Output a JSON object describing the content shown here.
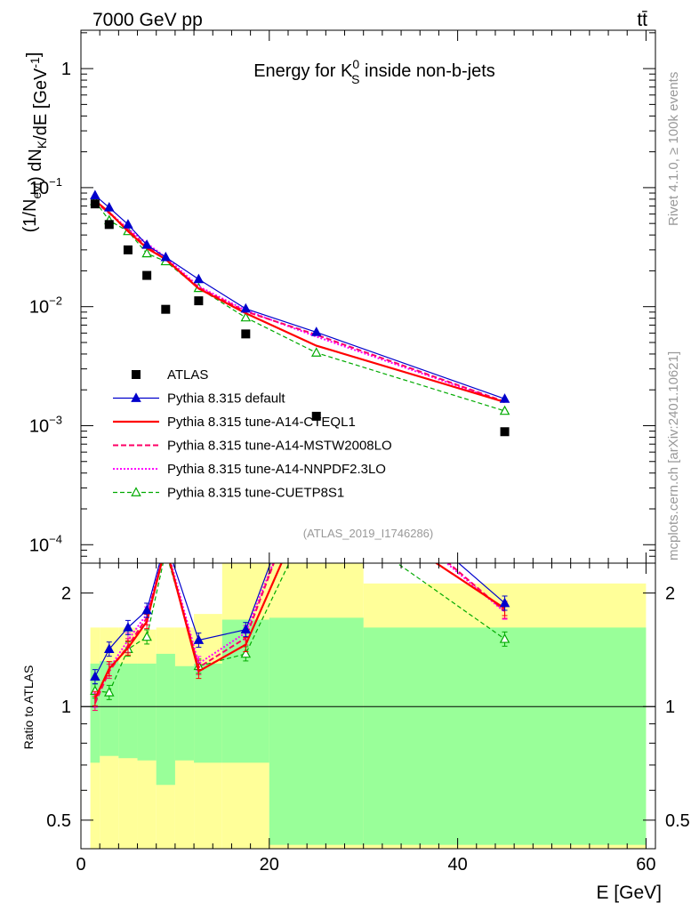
{
  "header": {
    "energy_label": "7000 GeV pp",
    "process_label": "tt̄"
  },
  "side": {
    "rivet_label": "Rivet 4.1.0, ≥ 100k events",
    "mcplots_label": "mcplots.cern.ch [arXiv:2401.10621]"
  },
  "chart_data": [
    {
      "type": "line",
      "title": "Energy for K⁰S inside non-b-jets",
      "title_parts": {
        "main": "Energy for K",
        "sup": "0",
        "sub": "S",
        "rest": " inside non-b-jets"
      },
      "ylabel": "(1/Nevt) dNK/dE [GeV⁻¹]",
      "ylabel_parts": [
        {
          "t": "(1/N",
          "s": "n"
        },
        {
          "t": "evt",
          "s": "sub"
        },
        {
          "t": ") dN",
          "s": "n"
        },
        {
          "t": "K",
          "s": "sub"
        },
        {
          "t": "/dE [GeV",
          "s": "n"
        },
        {
          "t": "-1",
          "s": "sup"
        },
        {
          "t": "]",
          "s": "n"
        }
      ],
      "yscale": "log",
      "xlim": [
        0,
        61
      ],
      "ylim": [
        7e-05,
        2.1
      ],
      "ytick_labels": [
        {
          "v": 1,
          "base": "1",
          "exp": ""
        },
        {
          "v": 0.1,
          "base": "10",
          "exp": "−1"
        },
        {
          "v": 0.01,
          "base": "10",
          "exp": "−2"
        },
        {
          "v": 0.001,
          "base": "10",
          "exp": "−3"
        },
        {
          "v": 0.0001,
          "base": "10",
          "exp": "−4"
        }
      ],
      "analysis_label": "(ATLAS_2019_I1746286)",
      "legend_position": "lower-left",
      "x": [
        1.5,
        3,
        5,
        7,
        9,
        12.5,
        17.5,
        25,
        45
      ],
      "series": [
        {
          "name": "ATLAS",
          "style": "data",
          "color": "#000000",
          "values": [
            0.073,
            0.049,
            0.03,
            0.0183,
            0.0095,
            0.0112,
            0.0059,
            0.0012,
            0.00089
          ]
        },
        {
          "name": "Pythia 8.315 default",
          "style": "solid-triangle",
          "color": "#0000cc",
          "values": [
            0.086,
            0.068,
            0.049,
            0.033,
            0.026,
            0.017,
            0.0096,
            0.0061,
            0.00168
          ]
        },
        {
          "name": "Pythia 8.315 tune-A14-CTEQL1",
          "style": "solid",
          "color": "#ff0000",
          "values": [
            0.078,
            0.062,
            0.043,
            0.031,
            0.025,
            0.0142,
            0.0088,
            0.0047,
            0.00158
          ]
        },
        {
          "name": "Pythia 8.315 tune-A14-MSTW2008LO",
          "style": "dashed",
          "color": "#ff0066",
          "values": [
            0.076,
            0.061,
            0.044,
            0.032,
            0.025,
            0.0145,
            0.0091,
            0.0058,
            0.00159
          ]
        },
        {
          "name": "Pythia 8.315 tune-A14-NNPDF2.3LO",
          "style": "dotted",
          "color": "#ff00ff",
          "values": [
            0.077,
            0.062,
            0.045,
            0.034,
            0.026,
            0.0148,
            0.0093,
            0.0056,
            0.00157
          ]
        },
        {
          "name": "Pythia 8.315 tune-CUETP8S1",
          "style": "dashed-open-triangle",
          "color": "#00aa00",
          "values": [
            0.077,
            0.053,
            0.043,
            0.028,
            0.024,
            0.0143,
            0.0081,
            0.0041,
            0.00133
          ]
        }
      ]
    },
    {
      "type": "line",
      "ylabel": "Ratio to ATLAS",
      "xlabel": "E [GeV]",
      "yscale": "log",
      "xlim": [
        0,
        61
      ],
      "ylim": [
        0.42,
        2.4
      ],
      "xticks": [
        0,
        20,
        40,
        60
      ],
      "xtick_labels": [
        "0",
        "20",
        "40",
        "60"
      ],
      "yticks": [
        0.5,
        1,
        2
      ],
      "ytick_labels": [
        "0.5",
        "1",
        "2"
      ],
      "bands": {
        "edges": [
          1,
          2,
          4,
          6,
          8,
          10,
          12,
          15,
          20,
          30,
          60
        ],
        "green_low": [
          0.71,
          0.74,
          0.73,
          0.72,
          0.62,
          0.72,
          0.71,
          0.71,
          0.43,
          0.43
        ],
        "green_high": [
          1.3,
          1.32,
          1.3,
          1.3,
          1.38,
          1.28,
          1.3,
          1.7,
          1.72,
          1.62
        ],
        "yellow_low": [
          0.42,
          0.42,
          0.42,
          0.42,
          0.42,
          0.42,
          0.42,
          0.42,
          0.42,
          0.42
        ],
        "yellow_high": [
          1.62,
          1.62,
          1.62,
          1.6,
          1.62,
          1.62,
          1.76,
          2.5,
          2.5,
          2.12
        ]
      },
      "series": [
        {
          "name": "Pythia 8.315 default",
          "values": [
            1.2,
            1.42,
            1.62,
            1.8,
            2.75,
            1.5,
            1.6,
            5.1,
            1.88
          ]
        },
        {
          "name": "Pythia 8.315 tune-A14-CTEQL1",
          "values": [
            1.05,
            1.26,
            1.43,
            1.68,
            2.66,
            1.24,
            1.46,
            3.9,
            1.82
          ]
        },
        {
          "name": "Pythia 8.315 tune-A14-MSTW2008LO",
          "values": [
            1.02,
            1.24,
            1.45,
            1.72,
            2.66,
            1.27,
            1.52,
            4.8,
            1.79
          ]
        },
        {
          "name": "Pythia 8.315 tune-A14-NNPDF2.3LO",
          "values": [
            1.04,
            1.26,
            1.5,
            1.76,
            2.7,
            1.3,
            1.57,
            4.7,
            1.78
          ]
        },
        {
          "name": "Pythia 8.315 tune-CUETP8S1",
          "values": [
            1.1,
            1.09,
            1.42,
            1.53,
            2.58,
            1.28,
            1.38,
            3.4,
            1.51
          ]
        }
      ]
    }
  ]
}
